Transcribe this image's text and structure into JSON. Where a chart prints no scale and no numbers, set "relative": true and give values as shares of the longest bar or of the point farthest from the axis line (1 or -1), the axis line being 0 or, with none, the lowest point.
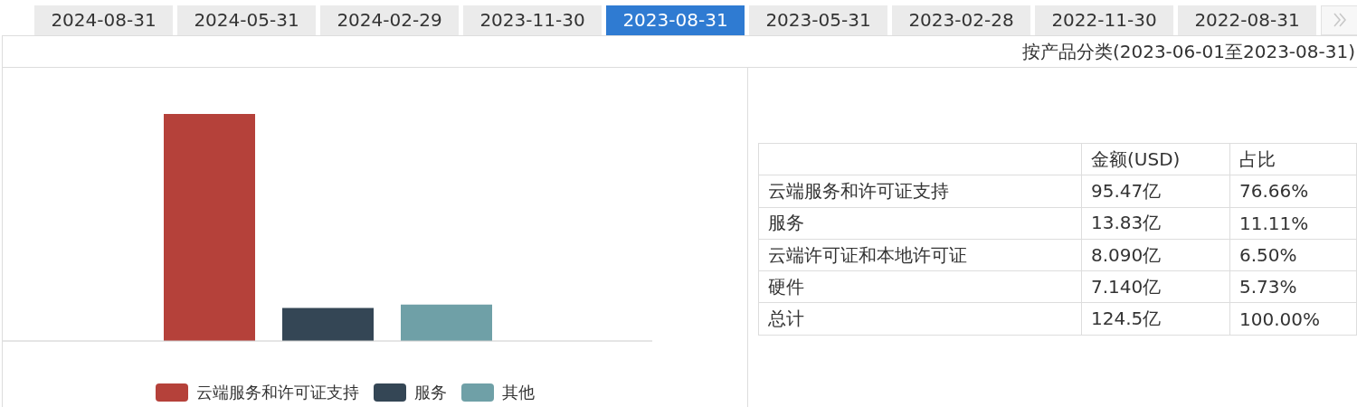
{
  "chart_data": [
    {
      "type": "other",
      "annotations": [
        "2024-08-31",
        "2024-05-31",
        "2024-02-29",
        "2023-11-30",
        "2023-08-31",
        "2023-05-31",
        "2023-02-28",
        "2022-11-30",
        "2022-08-31"
      ]
    },
    {
      "type": "bar",
      "relative": true,
      "categories": [
        null
      ],
      "series": [
        {
          "name": "云端服务和许可证支持",
          "color": "#b5413a",
          "values": [
            1
          ]
        },
        {
          "name": "服务",
          "color": "#344655",
          "values": [
            0.145
          ]
        },
        {
          "name": "其他",
          "color": "#6fa0a7",
          "values": [
            0.16
          ]
        }
      ],
      "legend": "bottom"
    },
    {
      "type": "other",
      "title": "按产品分类(2023-06-01至2023-08-31)",
      "categories": [
        "金额(USD)",
        "占比"
      ],
      "y_categories": [
        "云端服务和许可证支持",
        "服务",
        "云端许可证和本地许可证",
        "硬件",
        "总计"
      ],
      "cell_labels": [
        [
          "95.47亿",
          "76.66%"
        ],
        [
          "13.83亿",
          "11.11%"
        ],
        [
          "8.090亿",
          "6.50%"
        ],
        [
          "7.140亿",
          "5.73%"
        ],
        [
          "124.5亿",
          "100.00%"
        ]
      ]
    }
  ]
}
